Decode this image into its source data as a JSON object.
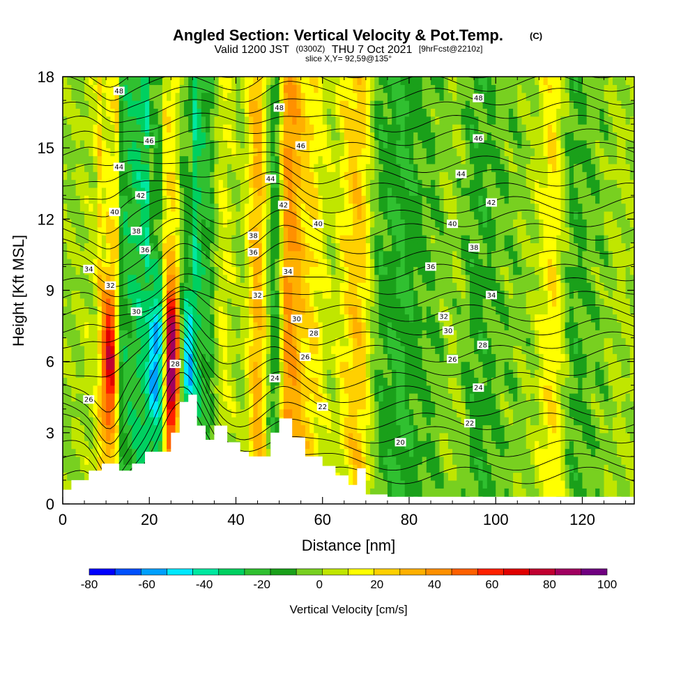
{
  "chart_data": {
    "type": "heatmap",
    "title": "Angled Section: Vertical Velocity & Pot.Temp.",
    "title_suffix": "(C)",
    "subtitle_parts": [
      "Valid 1200 JST",
      "(0300Z)",
      "THU 7 Oct 2021",
      "[9hrFcst@2210z]"
    ],
    "slice_note": "slice X,Y= 92,59@135°",
    "xlabel": "Distance [nm]",
    "ylabel": "Height [Kft MSL]",
    "xlim": [
      0,
      132
    ],
    "ylim": [
      0,
      18
    ],
    "x_ticks": [
      0,
      20,
      40,
      60,
      80,
      100,
      120
    ],
    "y_ticks": [
      0,
      3,
      6,
      9,
      12,
      15,
      18
    ],
    "x_tick_labels": [
      "0",
      "20",
      "40",
      "60",
      "80",
      "100",
      "120"
    ],
    "y_tick_labels": [
      "0",
      "3",
      "6",
      "9",
      "12",
      "15",
      "18"
    ],
    "colorbar": {
      "label": "Vertical Velocity [cm/s]",
      "min": -80,
      "max": 100,
      "tick_values": [
        -80,
        -60,
        -40,
        -20,
        0,
        20,
        40,
        60,
        80,
        100
      ],
      "tick_labels": [
        "-80",
        "-60",
        "-40",
        "-20",
        "0",
        "20",
        "40",
        "60",
        "80",
        "100"
      ],
      "colors": [
        "#0000ff",
        "#0050ff",
        "#00a0ff",
        "#00e8ff",
        "#00e8a0",
        "#00d060",
        "#30c030",
        "#1aa01a",
        "#78d020",
        "#c0e600",
        "#ffff00",
        "#ffd000",
        "#ffb000",
        "#ff9000",
        "#ff6000",
        "#ff2000",
        "#e00000",
        "#c00030",
        "#a00060",
        "#700080"
      ]
    },
    "velocity_columns": [
      {
        "x": 3,
        "w": 0
      },
      {
        "x": 7,
        "w": 5
      },
      {
        "x": 11,
        "w": 55
      },
      {
        "x": 14,
        "w": -20
      },
      {
        "x": 18,
        "w": -28
      },
      {
        "x": 22,
        "w": -45
      },
      {
        "x": 25,
        "w": 72
      },
      {
        "x": 29,
        "w": -40
      },
      {
        "x": 33,
        "w": -20
      },
      {
        "x": 37,
        "w": 10
      },
      {
        "x": 41,
        "w": 0
      },
      {
        "x": 45,
        "w": 30
      },
      {
        "x": 49,
        "w": -15
      },
      {
        "x": 52,
        "w": 40
      },
      {
        "x": 57,
        "w": 20
      },
      {
        "x": 62,
        "w": 5
      },
      {
        "x": 68,
        "w": 25
      },
      {
        "x": 74,
        "w": -12
      },
      {
        "x": 78,
        "w": -18
      },
      {
        "x": 84,
        "w": -8
      },
      {
        "x": 90,
        "w": 0
      },
      {
        "x": 96,
        "w": -12
      },
      {
        "x": 102,
        "w": -5
      },
      {
        "x": 108,
        "w": 0
      },
      {
        "x": 113,
        "w": 18
      },
      {
        "x": 118,
        "w": -10
      },
      {
        "x": 123,
        "w": -5
      },
      {
        "x": 128,
        "w": 2
      }
    ],
    "terrain": [
      {
        "x": 0,
        "h": 0.6
      },
      {
        "x": 2,
        "h": 1.0
      },
      {
        "x": 6,
        "h": 1.4
      },
      {
        "x": 9,
        "h": 1.7
      },
      {
        "x": 13,
        "h": 1.4
      },
      {
        "x": 16,
        "h": 1.7
      },
      {
        "x": 19,
        "h": 2.2
      },
      {
        "x": 22,
        "h": 2.2
      },
      {
        "x": 25,
        "h": 3.0
      },
      {
        "x": 27,
        "h": 4.3
      },
      {
        "x": 29,
        "h": 4.6
      },
      {
        "x": 31,
        "h": 3.3
      },
      {
        "x": 33,
        "h": 2.7
      },
      {
        "x": 35,
        "h": 3.3
      },
      {
        "x": 38,
        "h": 2.6
      },
      {
        "x": 41,
        "h": 2.2
      },
      {
        "x": 43,
        "h": 2.0
      },
      {
        "x": 45,
        "h": 2.0
      },
      {
        "x": 48,
        "h": 3.0
      },
      {
        "x": 50,
        "h": 3.6
      },
      {
        "x": 53,
        "h": 2.8
      },
      {
        "x": 56,
        "h": 2.0
      },
      {
        "x": 60,
        "h": 1.6
      },
      {
        "x": 63,
        "h": 1.2
      },
      {
        "x": 66,
        "h": 0.8
      },
      {
        "x": 68,
        "h": 1.5
      },
      {
        "x": 70,
        "h": 0.4
      },
      {
        "x": 75,
        "h": 0.3
      },
      {
        "x": 132,
        "h": 0.3
      }
    ],
    "contour_labels": [
      {
        "x": 13,
        "y": 17.4,
        "label": "48"
      },
      {
        "x": 50,
        "y": 16.7,
        "label": "48"
      },
      {
        "x": 96,
        "y": 17.1,
        "label": "48"
      },
      {
        "x": 20,
        "y": 15.3,
        "label": "46"
      },
      {
        "x": 55,
        "y": 15.1,
        "label": "46"
      },
      {
        "x": 96,
        "y": 15.4,
        "label": "46"
      },
      {
        "x": 13,
        "y": 14.2,
        "label": "44"
      },
      {
        "x": 48,
        "y": 13.7,
        "label": "44"
      },
      {
        "x": 92,
        "y": 13.9,
        "label": "44"
      },
      {
        "x": 18,
        "y": 13.0,
        "label": "42"
      },
      {
        "x": 51,
        "y": 12.6,
        "label": "42"
      },
      {
        "x": 99,
        "y": 12.7,
        "label": "42"
      },
      {
        "x": 12,
        "y": 12.3,
        "label": "40"
      },
      {
        "x": 59,
        "y": 11.8,
        "label": "40"
      },
      {
        "x": 90,
        "y": 11.8,
        "label": "40"
      },
      {
        "x": 17,
        "y": 11.5,
        "label": "38"
      },
      {
        "x": 44,
        "y": 11.3,
        "label": "38"
      },
      {
        "x": 95,
        "y": 10.8,
        "label": "38"
      },
      {
        "x": 19,
        "y": 10.7,
        "label": "36"
      },
      {
        "x": 44,
        "y": 10.6,
        "label": "36"
      },
      {
        "x": 85,
        "y": 10.0,
        "label": "36"
      },
      {
        "x": 6,
        "y": 9.9,
        "label": "34"
      },
      {
        "x": 52,
        "y": 9.8,
        "label": "34"
      },
      {
        "x": 99,
        "y": 8.8,
        "label": "34"
      },
      {
        "x": 11,
        "y": 9.2,
        "label": "32"
      },
      {
        "x": 45,
        "y": 8.8,
        "label": "32"
      },
      {
        "x": 88,
        "y": 7.9,
        "label": "32"
      },
      {
        "x": 17,
        "y": 8.1,
        "label": "30"
      },
      {
        "x": 54,
        "y": 7.8,
        "label": "30"
      },
      {
        "x": 89,
        "y": 7.3,
        "label": "30"
      },
      {
        "x": 58,
        "y": 7.2,
        "label": "28"
      },
      {
        "x": 97,
        "y": 6.7,
        "label": "28"
      },
      {
        "x": 26,
        "y": 5.9,
        "label": "28"
      },
      {
        "x": 56,
        "y": 6.2,
        "label": "26"
      },
      {
        "x": 90,
        "y": 6.1,
        "label": "26"
      },
      {
        "x": 6,
        "y": 4.4,
        "label": "26"
      },
      {
        "x": 49,
        "y": 5.3,
        "label": "24"
      },
      {
        "x": 96,
        "y": 4.9,
        "label": "24"
      },
      {
        "x": 60,
        "y": 4.1,
        "label": "22"
      },
      {
        "x": 94,
        "y": 3.4,
        "label": "22"
      },
      {
        "x": 78,
        "y": 2.6,
        "label": "20"
      }
    ],
    "isentrope_count": 31
  }
}
